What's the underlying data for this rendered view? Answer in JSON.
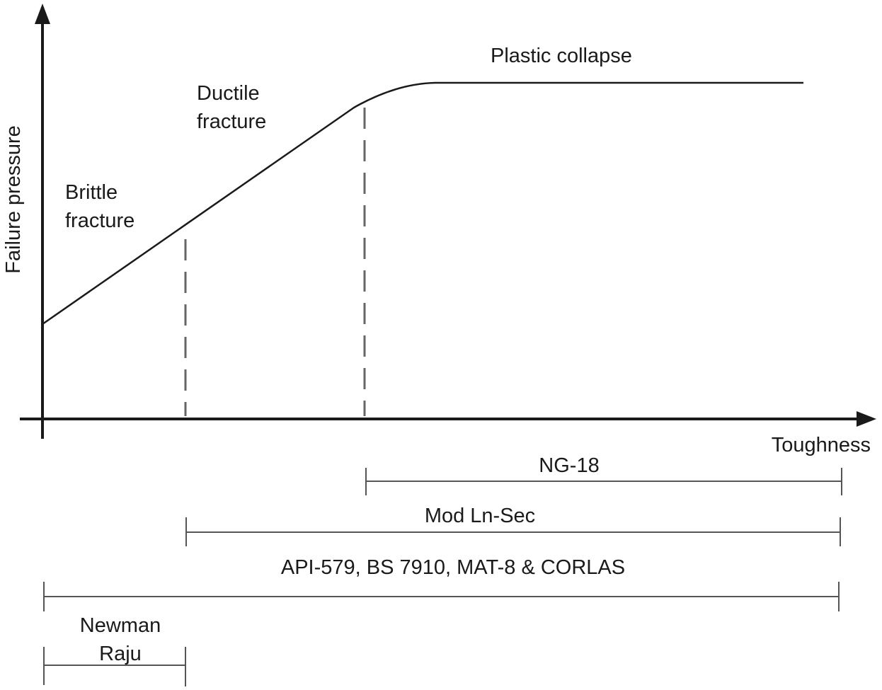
{
  "axes": {
    "y_label": "Failure pressure",
    "x_label": "Toughness"
  },
  "regions": {
    "brittle": [
      "Brittle",
      "fracture"
    ],
    "ductile": [
      "Ductile",
      "fracture"
    ],
    "plastic": "Plastic collapse"
  },
  "ranges": [
    {
      "label": "NG-18"
    },
    {
      "label": "Mod Ln-Sec"
    },
    {
      "label": "API-579, BS 7910, MAT-8 & CORLAS"
    },
    {
      "label_lines": [
        "Newman",
        "Raju"
      ]
    }
  ],
  "colors": {
    "ink": "#1a1a1a",
    "dashed": "#666666",
    "range_line": "#555555"
  }
}
